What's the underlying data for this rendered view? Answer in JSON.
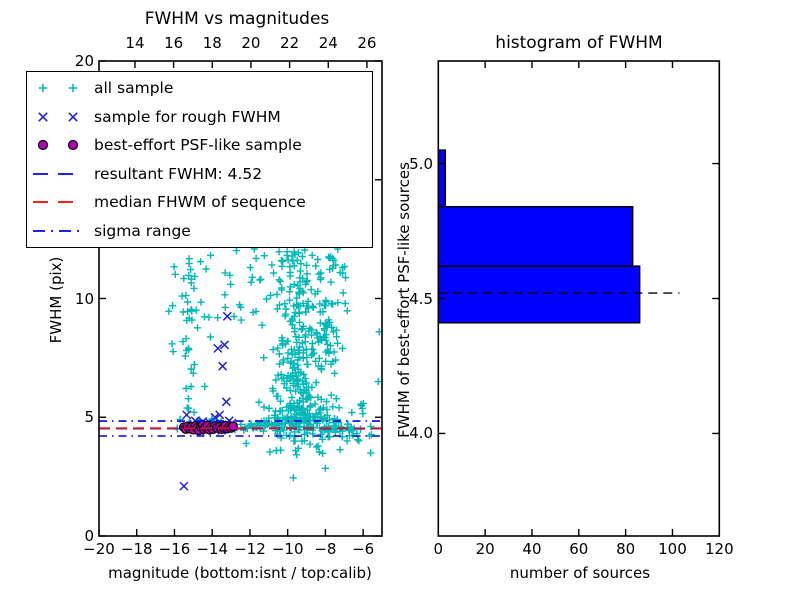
{
  "figure": {
    "background": "#ffffff"
  },
  "palette": {
    "all_sample": "#00b8b8",
    "rough_sample": "#2222dd",
    "psf_sample_fill": "#b300b3",
    "psf_sample_edge": "#000000",
    "resultant_line": "#0000ee",
    "sigma_line": "#0000ee",
    "median_line": "#ff0000",
    "hist_bar_fill": "#0000ff",
    "hist_bar_edge": "#000000",
    "hist_dashed_line": "#000000",
    "axes": "#000000"
  },
  "legend": {
    "items": [
      {
        "label": "all sample",
        "type": "markers",
        "marker": "plus",
        "color": "#00b8b8"
      },
      {
        "label": "sample for rough FWHM",
        "type": "markers",
        "marker": "x",
        "color": "#2222dd"
      },
      {
        "label": "best-effort PSF-like sample",
        "type": "markers",
        "marker": "circle",
        "color": "#b300b3",
        "edge": "#000000"
      },
      {
        "label": "resultant FWHM: 4.52",
        "type": "line",
        "style": "dashed",
        "color": "#0000ee"
      },
      {
        "label": "median FHWM of sequence",
        "type": "line",
        "style": "dashed",
        "color": "#ff0000"
      },
      {
        "label": "sigma range",
        "type": "line",
        "style": "dashdot",
        "color": "#0000ee"
      }
    ]
  },
  "chart_data": [
    {
      "type": "scatter",
      "title": "FWHM vs magnitudes",
      "xlabel": "magnitude (bottom:isnt / top:calib)",
      "ylabel": "FWHM (pix)",
      "xlim": [
        -20,
        -5
      ],
      "ylim": [
        0,
        20
      ],
      "top_xlim": [
        12.14,
        26.78
      ],
      "xticks": {
        "values": [
          -20,
          -18,
          -16,
          -14,
          -12,
          -10,
          -8,
          -6
        ],
        "labels": [
          "−20",
          "−18",
          "−16",
          "−14",
          "−12",
          "−10",
          "−8",
          "−6"
        ]
      },
      "top_xticks": {
        "values": [
          14,
          16,
          18,
          20,
          22,
          24,
          26
        ],
        "labels": [
          "14",
          "16",
          "18",
          "20",
          "22",
          "24",
          "26"
        ]
      },
      "yticks": {
        "values": [
          0,
          5,
          10,
          15,
          20
        ],
        "labels": [
          "0",
          "5",
          "10",
          "15",
          "20"
        ]
      },
      "grid": false,
      "series": [
        {
          "name": "all sample",
          "marker": "plus",
          "color": "#00b8b8",
          "clusters": [
            {
              "name": "dense-horizontal-band",
              "x": {
                "dist": "uniform",
                "min": -15.9,
                "max": -6.4
              },
              "y": {
                "dist": "normal",
                "mu": 4.62,
                "sigma": 0.14
              },
              "n": 90
            },
            {
              "name": "dense-band-core",
              "x": {
                "dist": "normal",
                "mu": -9.5,
                "sigma": 1.5
              },
              "y": {
                "dist": "normal",
                "mu": 4.6,
                "sigma": 0.16
              },
              "n": 60
            },
            {
              "name": "main-trunk",
              "x": {
                "dist": "normal",
                "mu": -9.4,
                "sigma": 0.85
              },
              "y": {
                "dist": "powlow",
                "min": 4.85,
                "max": 12.1,
                "k": 1.7
              },
              "n": 340
            },
            {
              "name": "trunk-upper-right",
              "x": {
                "dist": "normal",
                "mu": -7.7,
                "sigma": 0.4
              },
              "y": {
                "dist": "uniform",
                "min": 7.0,
                "max": 12.1
              },
              "n": 45
            },
            {
              "name": "left-column",
              "x": {
                "dist": "normal",
                "mu": -15.25,
                "sigma": 0.18
              },
              "y": {
                "dist": "uniform",
                "min": 4.9,
                "max": 12.1
              },
              "n": 28
            },
            {
              "name": "left-sparse",
              "x": {
                "dist": "uniform",
                "min": -16.3,
                "max": -13.4
              },
              "y": {
                "dist": "uniform",
                "min": 7.3,
                "max": 12.1
              },
              "n": 22
            },
            {
              "name": "mid-sparse",
              "x": {
                "dist": "uniform",
                "min": -13.4,
                "max": -11.4
              },
              "y": {
                "dist": "uniform",
                "min": 9.0,
                "max": 12.1
              },
              "n": 18
            },
            {
              "name": "below-band",
              "x": {
                "dist": "normal",
                "mu": -9.0,
                "sigma": 1.1
              },
              "y": {
                "dist": "uniform",
                "min": 3.4,
                "max": 4.3
              },
              "n": 24
            },
            {
              "name": "right-sparse",
              "x": {
                "dist": "uniform",
                "min": -7.7,
                "max": -5.05
              },
              "y": {
                "dist": "uniform",
                "min": 3.9,
                "max": 5.6
              },
              "n": 16
            }
          ],
          "points": [
            [
              -9.7,
              2.45
            ],
            [
              -8.0,
              2.85
            ],
            [
              -5.6,
              3.5
            ],
            [
              -6.6,
              5.2
            ],
            [
              -5.15,
              8.6
            ],
            [
              -5.2,
              6.5
            ],
            [
              -14.4,
              6.3
            ],
            [
              -15.0,
              6.85
            ],
            [
              -12.2,
              3.9
            ],
            [
              -10.6,
              3.6
            ]
          ]
        },
        {
          "name": "sample for rough FWHM",
          "marker": "x",
          "color": "#2222dd",
          "points": [
            [
              -15.5,
              2.1
            ],
            [
              -13.2,
              9.25
            ],
            [
              -13.7,
              7.9
            ],
            [
              -13.35,
              8.05
            ],
            [
              -13.45,
              7.15
            ],
            [
              -13.25,
              5.65
            ],
            [
              -13.6,
              5.1
            ],
            [
              -15.35,
              5.1
            ],
            [
              -13.85,
              5.0
            ],
            [
              -14.9,
              4.85
            ],
            [
              -14.5,
              4.82
            ],
            [
              -14.15,
              4.78
            ],
            [
              -13.1,
              4.85
            ],
            [
              -12.9,
              4.6
            ],
            [
              -15.15,
              4.5
            ],
            [
              -14.7,
              4.45
            ],
            [
              -14.3,
              4.42
            ],
            [
              -13.9,
              4.55
            ],
            [
              -13.5,
              4.45
            ],
            [
              -13.15,
              4.52
            ],
            [
              -12.95,
              4.75
            ]
          ]
        },
        {
          "name": "best-effort PSF-like sample",
          "marker": "circle",
          "color": "#b300b3",
          "edge": "#000000",
          "points": [
            [
              -15.5,
              4.58
            ],
            [
              -15.4,
              4.5
            ],
            [
              -15.3,
              4.62
            ],
            [
              -15.2,
              4.52
            ],
            [
              -15.1,
              4.6
            ],
            [
              -15.0,
              4.48
            ],
            [
              -14.9,
              4.63
            ],
            [
              -14.8,
              4.55
            ],
            [
              -14.7,
              4.45
            ],
            [
              -14.6,
              4.6
            ],
            [
              -14.5,
              4.68
            ],
            [
              -14.45,
              4.5
            ],
            [
              -14.35,
              4.58
            ],
            [
              -14.25,
              4.65
            ],
            [
              -14.15,
              4.48
            ],
            [
              -14.05,
              4.57
            ],
            [
              -13.95,
              4.5
            ],
            [
              -13.85,
              4.63
            ],
            [
              -13.75,
              4.55
            ],
            [
              -13.6,
              4.6
            ],
            [
              -13.5,
              4.5
            ],
            [
              -13.4,
              4.57
            ],
            [
              -13.3,
              4.65
            ],
            [
              -13.2,
              4.52
            ],
            [
              -13.1,
              4.6
            ],
            [
              -13.0,
              4.55
            ],
            [
              -12.9,
              4.62
            ]
          ]
        }
      ],
      "hlines": [
        {
          "name": "resultant FWHM",
          "y": 4.52,
          "style": "dashed",
          "color": "#0000ee"
        },
        {
          "name": "sigma range upper",
          "y": 4.84,
          "style": "dashdot",
          "color": "#0000ee"
        },
        {
          "name": "sigma range lower",
          "y": 4.21,
          "style": "dashdot",
          "color": "#0000ee"
        },
        {
          "name": "median FHWM of sequence",
          "y": 4.54,
          "style": "dashed",
          "color": "#ff0000"
        }
      ]
    },
    {
      "type": "bar-horizontal",
      "title": "histogram of FWHM",
      "xlabel": "number of sources",
      "ylabel": "FWHM of best-effort PSF-like sources",
      "xlim": [
        0,
        120
      ],
      "ylim": [
        3.62,
        5.38
      ],
      "xticks": {
        "values": [
          0,
          20,
          40,
          60,
          80,
          100,
          120
        ],
        "labels": [
          "0",
          "20",
          "40",
          "60",
          "80",
          "100",
          "120"
        ]
      },
      "yticks": {
        "values": [
          4.0,
          4.5,
          5.0
        ],
        "labels": [
          "4.0",
          "4.5",
          "5.0"
        ]
      },
      "grid": false,
      "bin_edges": [
        4.41,
        4.62,
        4.84,
        5.05
      ],
      "counts": [
        86,
        83,
        3
      ],
      "bar_fill": "#0000ff",
      "bar_edge": "#000000",
      "dashed_line": {
        "y": 4.52,
        "x_start": 0,
        "x_end": 103,
        "color": "#000000"
      }
    }
  ]
}
